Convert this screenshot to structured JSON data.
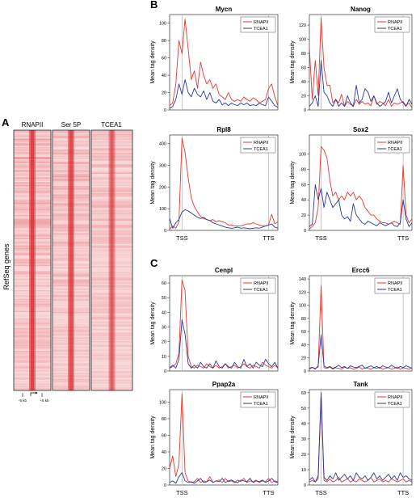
{
  "panels": {
    "A": "A",
    "B": "B",
    "C": "C"
  },
  "heatmap": {
    "columns": [
      "RNAPII",
      "Ser 5P",
      "TCEA1"
    ],
    "ylabel": "RefSeq genes",
    "scale_left": "-5 kb",
    "scale_right": "+5 kb"
  },
  "common": {
    "ylabel": "Mean tag density",
    "x_ticks": [
      "TSS",
      "TTS"
    ],
    "legend": [
      "RNAPII",
      "TCEA1"
    ],
    "colors": {
      "RNAPII": "#e8362e",
      "TCEA1": "#2a3a94",
      "heatmap": "#d7262b",
      "tss_line": "#bbbbbb"
    }
  },
  "chart_data": [
    {
      "type": "line",
      "title": "Mycn",
      "ylim": [
        0,
        110
      ],
      "yticks": [
        0,
        20,
        40,
        60,
        80,
        100
      ],
      "series": [
        {
          "name": "RNAPII",
          "values": [
            5,
            8,
            30,
            80,
            65,
            105,
            70,
            35,
            45,
            25,
            55,
            40,
            30,
            35,
            25,
            30,
            18,
            15,
            12,
            20,
            12,
            10,
            12,
            10,
            15,
            12,
            10,
            14,
            12,
            8,
            10,
            12,
            25,
            30,
            15,
            5
          ]
        },
        {
          "name": "TCEA1",
          "values": [
            2,
            4,
            12,
            30,
            18,
            35,
            20,
            15,
            25,
            18,
            15,
            22,
            12,
            20,
            10,
            8,
            12,
            6,
            8,
            5,
            8,
            6,
            5,
            8,
            6,
            8,
            5,
            6,
            5,
            8,
            6,
            5,
            15,
            10,
            5,
            3
          ]
        }
      ]
    },
    {
      "type": "line",
      "title": "Nanog",
      "ylim": [
        0,
        135
      ],
      "yticks": [
        0,
        20,
        40,
        60,
        80,
        100,
        120
      ],
      "series": [
        {
          "name": "RNAPII",
          "values": [
            88,
            15,
            70,
            20,
            130,
            60,
            35,
            35,
            10,
            15,
            10,
            22,
            5,
            12,
            8,
            5,
            15,
            8,
            12,
            8,
            10,
            6,
            20,
            8,
            12,
            10,
            6,
            15,
            5,
            10,
            8,
            10,
            12,
            6,
            10,
            3
          ]
        },
        {
          "name": "TCEA1",
          "values": [
            5,
            10,
            20,
            5,
            70,
            25,
            20,
            10,
            5,
            15,
            5,
            10,
            5,
            20,
            10,
            5,
            35,
            10,
            15,
            30,
            25,
            12,
            20,
            10,
            5,
            8,
            12,
            25,
            10,
            20,
            30,
            15,
            10,
            5,
            15,
            8
          ]
        }
      ]
    },
    {
      "type": "line",
      "title": "Rpl8",
      "ylim": [
        0,
        440
      ],
      "yticks": [
        0,
        100,
        200,
        300,
        400
      ],
      "series": [
        {
          "name": "RNAPII",
          "values": [
            5,
            20,
            10,
            40,
            425,
            360,
            240,
            150,
            110,
            85,
            65,
            55,
            50,
            45,
            50,
            40,
            45,
            40,
            35,
            25,
            25,
            20,
            20,
            20,
            25,
            30,
            30,
            35,
            30,
            25,
            20,
            20,
            25,
            75,
            30,
            40
          ]
        },
        {
          "name": "TCEA1",
          "values": [
            55,
            10,
            35,
            50,
            85,
            95,
            90,
            80,
            70,
            60,
            55,
            60,
            50,
            45,
            35,
            30,
            25,
            20,
            15,
            12,
            10,
            12,
            15,
            10,
            12,
            10,
            8,
            10,
            12,
            10,
            15,
            20,
            25,
            30,
            15,
            10
          ]
        }
      ]
    },
    {
      "type": "line",
      "title": "Sox2",
      "ylim": [
        0,
        125
      ],
      "yticks": [
        0,
        20,
        40,
        60,
        80,
        100
      ],
      "series": [
        {
          "name": "RNAPII",
          "values": [
            2,
            5,
            10,
            30,
            110,
            105,
            95,
            65,
            45,
            50,
            40,
            45,
            40,
            50,
            45,
            50,
            40,
            45,
            40,
            30,
            25,
            20,
            20,
            15,
            12,
            10,
            10,
            8,
            10,
            12,
            10,
            8,
            85,
            20,
            10,
            15
          ]
        },
        {
          "name": "TCEA1",
          "values": [
            5,
            8,
            60,
            40,
            55,
            30,
            50,
            40,
            30,
            35,
            40,
            20,
            15,
            18,
            12,
            35,
            20,
            15,
            10,
            8,
            12,
            10,
            8,
            6,
            10,
            8,
            6,
            8,
            10,
            6,
            5,
            10,
            40,
            15,
            5,
            10
          ]
        }
      ]
    },
    {
      "type": "line",
      "title": "Cenpl",
      "ylim": [
        0,
        65
      ],
      "yticks": [
        0,
        10,
        20,
        30,
        40,
        50,
        60
      ],
      "series": [
        {
          "name": "RNAPII",
          "values": [
            2,
            3,
            5,
            12,
            62,
            55,
            10,
            3,
            2,
            4,
            3,
            2,
            5,
            3,
            2,
            4,
            2,
            3,
            5,
            2,
            3,
            4,
            2,
            3,
            5,
            3,
            2,
            4,
            3,
            2,
            6,
            4,
            3,
            2,
            4,
            2
          ]
        },
        {
          "name": "TCEA1",
          "values": [
            2,
            4,
            2,
            8,
            35,
            25,
            5,
            2,
            4,
            2,
            6,
            3,
            2,
            5,
            2,
            7,
            3,
            2,
            5,
            3,
            2,
            6,
            3,
            2,
            8,
            3,
            5,
            2,
            6,
            4,
            3,
            8,
            5,
            3,
            6,
            2
          ]
        }
      ]
    },
    {
      "type": "line",
      "title": "Ercc6",
      "ylim": [
        0,
        145
      ],
      "yticks": [
        0,
        20,
        40,
        60,
        80,
        100,
        120,
        140
      ],
      "series": [
        {
          "name": "RNAPII",
          "values": [
            3,
            5,
            4,
            6,
            130,
            5,
            4,
            6,
            3,
            5,
            4,
            3,
            6,
            4,
            5,
            3,
            4,
            6,
            3,
            5,
            4,
            3,
            5,
            4,
            6,
            3,
            4,
            5,
            3,
            4,
            6,
            3,
            5,
            4,
            3,
            5
          ]
        },
        {
          "name": "TCEA1",
          "values": [
            4,
            6,
            3,
            8,
            55,
            8,
            5,
            7,
            4,
            6,
            9,
            5,
            7,
            4,
            8,
            6,
            5,
            7,
            9,
            4,
            6,
            8,
            5,
            7,
            4,
            8,
            6,
            5,
            9,
            6,
            4,
            7,
            5,
            8,
            6,
            4
          ]
        }
      ]
    },
    {
      "type": "line",
      "title": "Ppap2a",
      "ylim": [
        0,
        115
      ],
      "yticks": [
        0,
        20,
        40,
        60,
        80,
        100
      ],
      "series": [
        {
          "name": "RNAPII",
          "values": [
            20,
            35,
            10,
            25,
            110,
            15,
            5,
            3,
            4,
            8,
            3,
            5,
            4,
            10,
            3,
            5,
            6,
            3,
            8,
            4,
            5,
            3,
            6,
            4,
            8,
            3,
            5,
            4,
            6,
            3,
            5,
            4,
            8,
            3,
            5,
            4
          ]
        },
        {
          "name": "TCEA1",
          "values": [
            3,
            5,
            2,
            10,
            15,
            5,
            3,
            4,
            2,
            5,
            8,
            3,
            4,
            6,
            3,
            5,
            4,
            8,
            3,
            5,
            6,
            4,
            3,
            6,
            5,
            4,
            8,
            3,
            5,
            4,
            6,
            3,
            5,
            8,
            4,
            3
          ]
        }
      ]
    },
    {
      "type": "line",
      "title": "Tank",
      "ylim": [
        0,
        62
      ],
      "yticks": [
        0,
        10,
        20,
        30,
        40,
        50,
        60
      ],
      "series": [
        {
          "name": "RNAPII",
          "values": [
            2,
            3,
            2,
            4,
            58,
            3,
            2,
            4,
            2,
            3,
            5,
            2,
            3,
            4,
            2,
            3,
            2,
            4,
            3,
            2,
            3,
            5,
            2,
            3,
            4,
            2,
            3,
            2,
            4,
            3,
            2,
            3,
            4,
            2,
            3,
            2
          ]
        },
        {
          "name": "TCEA1",
          "values": [
            3,
            5,
            2,
            6,
            60,
            5,
            3,
            6,
            4,
            8,
            3,
            5,
            7,
            4,
            6,
            3,
            8,
            5,
            4,
            6,
            3,
            5,
            8,
            4,
            6,
            3,
            5,
            7,
            4,
            6,
            3,
            8,
            5,
            6,
            4,
            3
          ]
        }
      ]
    }
  ]
}
